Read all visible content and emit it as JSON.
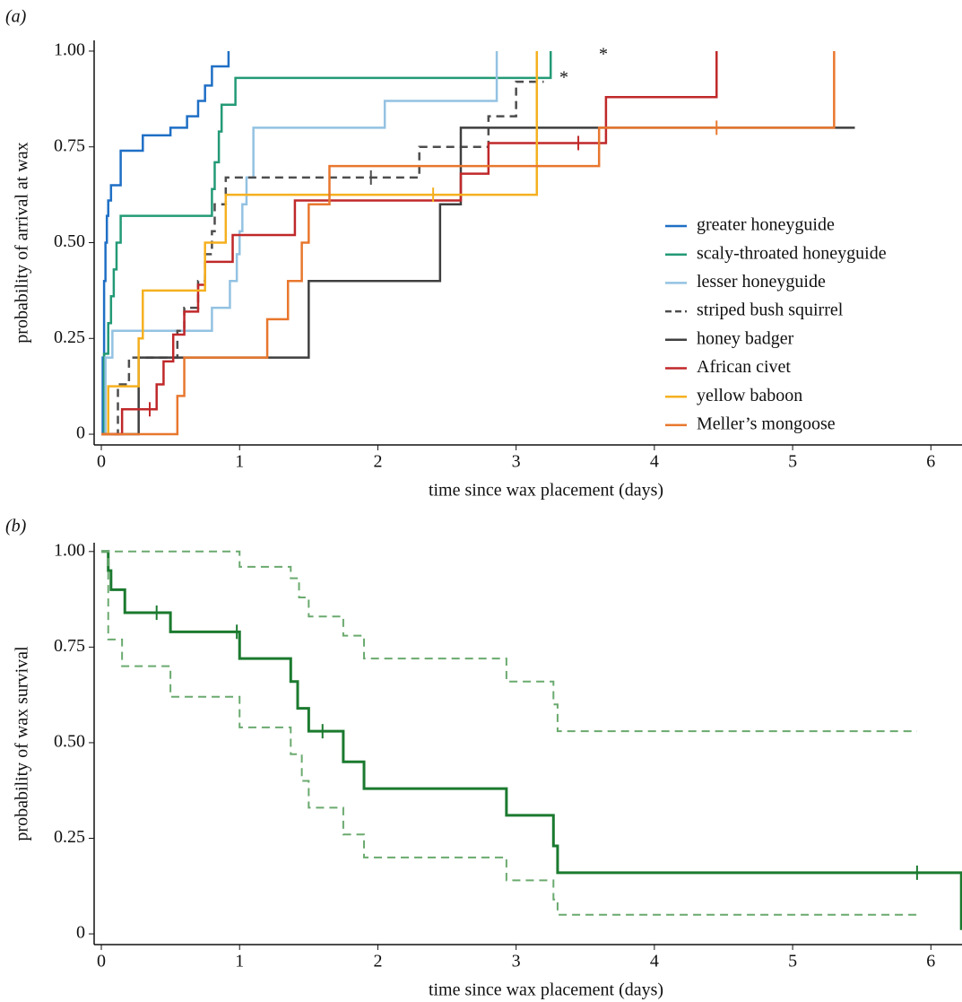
{
  "chart_data": [
    {
      "type": "step",
      "panel_label": "(a)",
      "xlabel": "time since wax placement (days)",
      "ylabel": "probability of arrival at wax",
      "xlim": [
        -0.052,
        6.225
      ],
      "ylim": [
        -0.028,
        1.028
      ],
      "xticks": [
        0,
        1,
        2,
        3,
        4,
        5,
        6
      ],
      "yticks": [
        0,
        0.25,
        {
          "value": 0.5,
          "label": "0.50"
        },
        0.75,
        {
          "value": 1,
          "label": "1.00"
        }
      ],
      "legend": "right",
      "annotations": [
        "*",
        "*"
      ],
      "series": [
        {
          "name": "greater honeyguide",
          "color": "#1f6fc5",
          "dash": false,
          "x": [
            0,
            0.01,
            0.02,
            0.03,
            0.04,
            0.05,
            0.07,
            0.14,
            0.3,
            0.5,
            0.62,
            0.7,
            0.75,
            0.8,
            0.92
          ],
          "values": [
            0,
            0.2,
            0.4,
            0.5,
            0.57,
            0.61,
            0.65,
            0.74,
            0.78,
            0.8,
            0.83,
            0.87,
            0.91,
            0.96,
            1.0
          ],
          "censored": []
        },
        {
          "name": "scaly-throated honeyguide",
          "color": "#239a76",
          "dash": false,
          "x": [
            0,
            0.02,
            0.05,
            0.07,
            0.09,
            0.11,
            0.14,
            0.8,
            0.82,
            0.85,
            0.87,
            0.97,
            3.25
          ],
          "values": [
            0,
            0.21,
            0.29,
            0.36,
            0.43,
            0.5,
            0.57,
            0.64,
            0.71,
            0.79,
            0.86,
            0.93,
            1.0
          ],
          "censored": []
        },
        {
          "name": "lesser honeyguide",
          "color": "#93c2e2",
          "dash": false,
          "x": [
            0,
            0.03,
            0.08,
            0.8,
            0.93,
            0.98,
            1.0,
            1.02,
            1.05,
            1.1,
            2.05,
            2.86
          ],
          "values": [
            0,
            0.2,
            0.27,
            0.33,
            0.4,
            0.47,
            0.53,
            0.6,
            0.67,
            0.8,
            0.87,
            1.0
          ],
          "censored": []
        },
        {
          "name": "striped bush squirrel",
          "color": "#4d4d4d",
          "dash": true,
          "x": [
            0,
            0.12,
            0.2,
            0.55,
            0.6,
            0.7,
            0.75,
            0.8,
            0.82,
            0.9,
            2.3,
            2.8,
            3.0,
            3.2
          ],
          "values": [
            0,
            0.13,
            0.2,
            0.27,
            0.33,
            0.4,
            0.47,
            0.53,
            0.6,
            0.67,
            0.75,
            0.83,
            0.92,
            0.92
          ],
          "censored": [
            1.95
          ]
        },
        {
          "name": "honey badger",
          "color": "#3f3f3f",
          "dash": false,
          "x": [
            0,
            0.27,
            1.5,
            2.45,
            2.6,
            5.45
          ],
          "values": [
            0,
            0.2,
            0.4,
            0.6,
            0.8,
            0.8
          ],
          "censored": []
        },
        {
          "name": "African civet",
          "color": "#c0282a",
          "dash": false,
          "x": [
            0,
            0.15,
            0.4,
            0.45,
            0.52,
            0.6,
            0.7,
            0.75,
            0.95,
            1.4,
            2.6,
            2.8,
            3.65,
            4.45
          ],
          "values": [
            0,
            0.065,
            0.13,
            0.19,
            0.26,
            0.32,
            0.39,
            0.45,
            0.52,
            0.61,
            0.68,
            0.76,
            0.88,
            1.0
          ],
          "censored": [
            0.35,
            3.45
          ]
        },
        {
          "name": "yellow baboon",
          "color": "#f5b01f",
          "dash": false,
          "x": [
            0,
            0.05,
            0.27,
            0.3,
            0.75,
            0.9,
            3.15
          ],
          "values": [
            0,
            0.125,
            0.25,
            0.375,
            0.5,
            0.625,
            1.0
          ],
          "censored": [
            2.4
          ]
        },
        {
          "name": "Meller’s mongoose",
          "color": "#e8772e",
          "dash": false,
          "x": [
            0,
            0.55,
            0.6,
            1.2,
            1.35,
            1.45,
            1.5,
            1.65,
            3.6,
            5.3
          ],
          "values": [
            0,
            0.1,
            0.2,
            0.3,
            0.4,
            0.5,
            0.6,
            0.7,
            0.8,
            1.0
          ],
          "censored": [
            4.45
          ]
        }
      ]
    },
    {
      "type": "step",
      "panel_label": "(b)",
      "xlabel": "time since wax placement (days)",
      "ylabel": "probability of wax survival",
      "xlim": [
        -0.052,
        6.225
      ],
      "ylim": [
        -0.028,
        1.023
      ],
      "xticks": [
        0,
        1,
        2,
        3,
        4,
        5,
        6
      ],
      "yticks": [
        0,
        0.25,
        {
          "value": 0.5,
          "label": "0.50"
        },
        0.75,
        {
          "value": 1,
          "label": "1.00"
        }
      ],
      "series": [
        {
          "color": "#1b7a2f",
          "dash": false,
          "width": 3,
          "x": [
            0,
            0.05,
            0.07,
            0.17,
            0.5,
            1.0,
            1.37,
            1.42,
            1.5,
            1.75,
            1.9,
            2.93,
            3.27,
            3.3,
            6.22
          ],
          "values": [
            1.0,
            0.95,
            0.9,
            0.84,
            0.79,
            0.72,
            0.66,
            0.59,
            0.53,
            0.45,
            0.38,
            0.31,
            0.23,
            0.16,
            0.01
          ],
          "censored": [
            0.4,
            0.98,
            1.6,
            5.9
          ]
        },
        {
          "color": "#6aaa6e",
          "dash": true,
          "width": 2,
          "x": [
            0,
            1.0,
            1.37,
            1.43,
            1.5,
            1.75,
            1.9,
            2.93,
            3.27,
            3.3,
            5.9
          ],
          "values": [
            1.0,
            0.96,
            0.93,
            0.88,
            0.83,
            0.78,
            0.72,
            0.66,
            0.6,
            0.53,
            0.53
          ],
          "censored": []
        },
        {
          "color": "#6aaa6e",
          "dash": true,
          "width": 2,
          "x": [
            0,
            0.05,
            0.15,
            0.5,
            1.0,
            1.37,
            1.45,
            1.5,
            1.75,
            1.9,
            2.93,
            3.27,
            3.3,
            5.9
          ],
          "values": [
            1.0,
            0.77,
            0.7,
            0.62,
            0.54,
            0.47,
            0.4,
            0.33,
            0.26,
            0.2,
            0.14,
            0.09,
            0.05,
            0.05
          ],
          "censored": []
        }
      ]
    }
  ]
}
